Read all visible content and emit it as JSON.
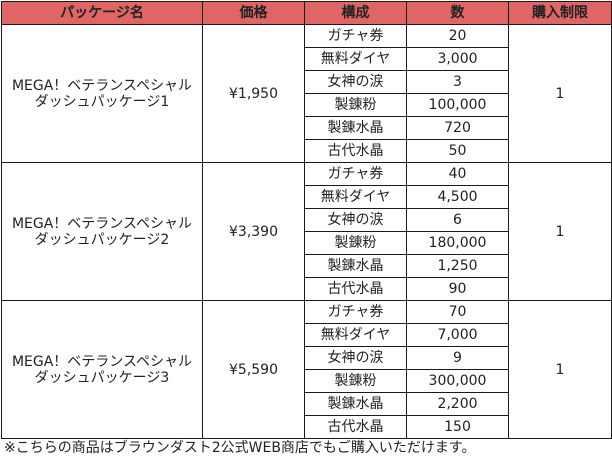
{
  "headers": [
    "パッケージ名",
    "価格",
    "構成",
    "数",
    "購入制限"
  ],
  "packages": [
    {
      "name_line1": "MEGA！ベテランスペシャル",
      "name_line2": "ダッシュパッケージ1",
      "price": "¥1,950",
      "limit": "1",
      "items": [
        {
          "item": "ガチャ券",
          "qty": "20"
        },
        {
          "item": "無料ダイヤ",
          "qty": "3,000"
        },
        {
          "item": "女神の涙",
          "qty": "3"
        },
        {
          "item": "製錬粉",
          "qty": "100,000"
        },
        {
          "item": "製錬水晶",
          "qty": "720"
        },
        {
          "item": "古代水晶",
          "qty": "50"
        }
      ]
    },
    {
      "name_line1": "MEGA！ベテランスペシャル",
      "name_line2": "ダッシュパッケージ2",
      "price": "¥3,390",
      "limit": "1",
      "items": [
        {
          "item": "ガチャ券",
          "qty": "40"
        },
        {
          "item": "無料ダイヤ",
          "qty": "4,500"
        },
        {
          "item": "女神の涙",
          "qty": "6"
        },
        {
          "item": "製錬粉",
          "qty": "180,000"
        },
        {
          "item": "製錬水晶",
          "qty": "1,250"
        },
        {
          "item": "古代水晶",
          "qty": "90"
        }
      ]
    },
    {
      "name_line1": "MEGA！ベテランスペシャル",
      "name_line2": "ダッシュパッケージ3",
      "price": "¥5,590",
      "limit": "1",
      "items": [
        {
          "item": "ガチャ券",
          "qty": "70"
        },
        {
          "item": "無料ダイヤ",
          "qty": "7,000"
        },
        {
          "item": "女神の涙",
          "qty": "9"
        },
        {
          "item": "製錬粉",
          "qty": "300,000"
        },
        {
          "item": "製錬水晶",
          "qty": "2,200"
        },
        {
          "item": "古代水晶",
          "qty": "150"
        }
      ]
    }
  ],
  "footnote": "※こちらの商品はブラウンダスト2公式WEB商店でもご購入いただけます。",
  "colors": {
    "header_bg": "#e06666",
    "border": "#1a1a1a"
  }
}
